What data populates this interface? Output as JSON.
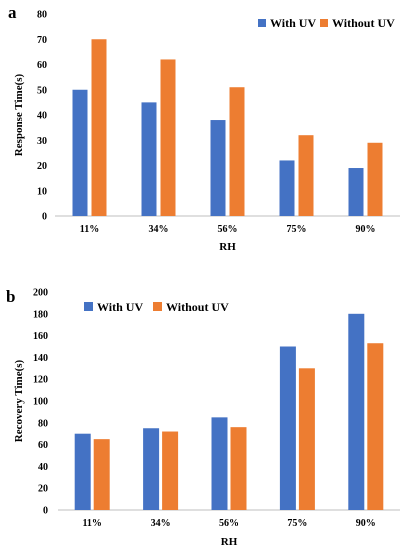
{
  "colors": {
    "with_uv": "#4472C4",
    "without_uv": "#ED7D31",
    "axis": "#BFBFBF"
  },
  "chart_data": [
    {
      "type": "bar",
      "panel_label": "a",
      "categories": [
        "11%",
        "34%",
        "56%",
        "75%",
        "90%"
      ],
      "series": [
        {
          "name": "With UV",
          "values": [
            50,
            45,
            38,
            22,
            19
          ]
        },
        {
          "name": "Without UV",
          "values": [
            70,
            62,
            51,
            32,
            29
          ]
        }
      ],
      "xlabel": "RH",
      "ylabel": "Response Time(s)",
      "ylim": [
        0,
        80
      ],
      "yticks": [
        "0",
        "10",
        "20",
        "30",
        "40",
        "50",
        "60",
        "70",
        "80"
      ],
      "legend": "top-right",
      "grid": false
    },
    {
      "type": "bar",
      "panel_label": "b",
      "categories": [
        "11%",
        "34%",
        "56%",
        "75%",
        "90%"
      ],
      "series": [
        {
          "name": "With UV",
          "values": [
            70,
            75,
            85,
            150,
            180
          ]
        },
        {
          "name": "Without UV",
          "values": [
            65,
            72,
            76,
            130,
            153
          ]
        }
      ],
      "xlabel": "RH",
      "ylabel": "Recovery Time(s)",
      "ylim": [
        0,
        200
      ],
      "yticks": [
        "0",
        "20",
        "40",
        "60",
        "80",
        "100",
        "120",
        "140",
        "160",
        "180",
        "200"
      ],
      "legend": "top-left",
      "grid": false
    }
  ]
}
